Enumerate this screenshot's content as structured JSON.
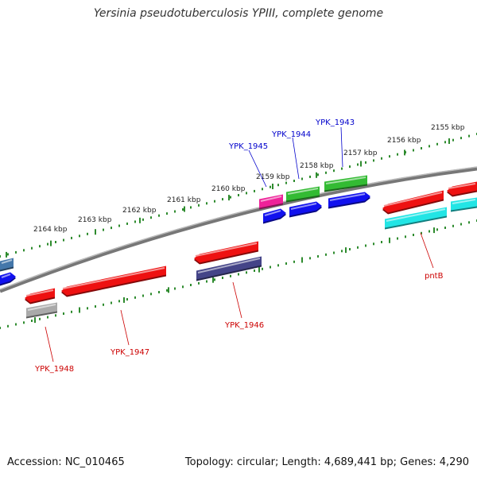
{
  "title": "Yersinia pseudotuberculosis YPIII, complete genome",
  "footer": {
    "accession": "Accession: NC_010465",
    "summary": "Topology: circular; Length: 4,689,441 bp; Genes: 4,290"
  },
  "scale_labels": [
    "2155 kbp",
    "2156 kbp",
    "2157 kbp",
    "2158 kbp",
    "2159 kbp",
    "2160 kbp",
    "2161 kbp",
    "2162 kbp",
    "2163 kbp",
    "2164 kbp"
  ],
  "gene_labels": [
    {
      "text": "YPK_1943",
      "color": "#0000cc"
    },
    {
      "text": "YPK_1944",
      "color": "#0000cc"
    },
    {
      "text": "YPK_1945",
      "color": "#0000cc"
    },
    {
      "text": "pntB",
      "color": "#cc0000"
    },
    {
      "text": "YPK_1946",
      "color": "#cc0000"
    },
    {
      "text": "YPK_1947",
      "color": "#cc0000"
    },
    {
      "text": "YPK_1948",
      "color": "#cc0000"
    }
  ],
  "colors": {
    "backbone": "#888888",
    "ticks": "#2e8b2e",
    "red": "#ee1111",
    "blue": "#1111ee",
    "green": "#33bb33",
    "cyan": "#22e5e5",
    "magenta": "#ee2299",
    "navy": "#444488",
    "gray": "#aaaaaa",
    "steel": "#4477aa"
  }
}
